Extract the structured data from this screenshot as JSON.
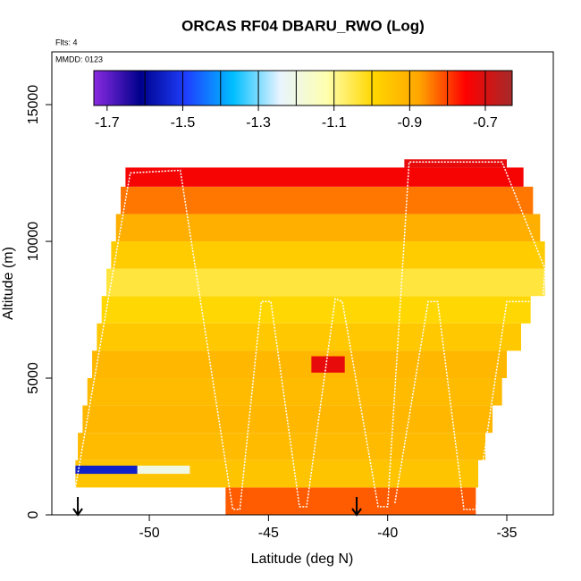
{
  "chart_data": {
    "type": "curtain",
    "title": "ORCAS RF04 DBARU_RWO (Log)",
    "annotations": [
      "Flts: 4",
      "MMDD: 0123"
    ],
    "x_label": "Latitude (deg N)",
    "y_label": "Altitude (m)",
    "xlim": [
      -54.09,
      -33.05
    ],
    "ylim": [
      0,
      16930
    ],
    "xticks": [
      -50,
      -45,
      -40,
      -35
    ],
    "yticks": [
      0,
      5000,
      10000,
      15000
    ],
    "colorbar": {
      "clim": [
        -1.735,
        -0.629
      ],
      "ticks": [
        -1.7,
        -1.5,
        -1.3,
        -1.1,
        -0.9,
        -0.7
      ],
      "bin_edges": [
        -1.6,
        -1.5,
        -1.4,
        -1.3,
        -1.2,
        -1.1,
        -1.0,
        -0.9,
        -0.8,
        -0.7
      ],
      "colormap": [
        "#8a2be2",
        "#00008b",
        "#1e40ff",
        "#00bfff",
        "#e8f4ff",
        "#ffffb0",
        "#ffd700",
        "#ffa500",
        "#ff0000",
        "#a52a2a"
      ]
    },
    "rows": [
      {
        "alt": [
          0,
          1000
        ],
        "lat": [
          -46.8,
          -36.3
        ],
        "value": -0.82
      },
      {
        "alt": [
          1000,
          2000
        ],
        "lat": [
          -53.1,
          -36.2
        ],
        "value": -0.95
      },
      {
        "alt": [
          1500,
          1800
        ],
        "lat": [
          -53.1,
          -50.5
        ],
        "value": -1.55
      },
      {
        "alt": [
          1500,
          1800
        ],
        "lat": [
          -50.5,
          -48.3
        ],
        "value": -1.2
      },
      {
        "alt": [
          2000,
          3000
        ],
        "lat": [
          -53.0,
          -35.9
        ],
        "value": -0.93
      },
      {
        "alt": [
          3000,
          4000
        ],
        "lat": [
          -52.8,
          -35.6
        ],
        "value": -0.92
      },
      {
        "alt": [
          4000,
          5000
        ],
        "lat": [
          -52.6,
          -35.2
        ],
        "value": -0.93
      },
      {
        "alt": [
          5000,
          6000
        ],
        "lat": [
          -52.4,
          -35.0
        ],
        "value": -0.92
      },
      {
        "alt": [
          5200,
          5800
        ],
        "lat": [
          -43.2,
          -41.8
        ],
        "value": -0.72
      },
      {
        "alt": [
          6000,
          7000
        ],
        "lat": [
          -52.2,
          -34.4
        ],
        "value": -0.96
      },
      {
        "alt": [
          7000,
          8000
        ],
        "lat": [
          -52.0,
          -34.0
        ],
        "value": -1.0
      },
      {
        "alt": [
          8000,
          9000
        ],
        "lat": [
          -51.8,
          -33.4
        ],
        "value": -1.04
      },
      {
        "alt": [
          9000,
          10000
        ],
        "lat": [
          -51.6,
          -33.4
        ],
        "value": -0.97
      },
      {
        "alt": [
          10000,
          11000
        ],
        "lat": [
          -51.4,
          -33.6
        ],
        "value": -0.9
      },
      {
        "alt": [
          11000,
          12000
        ],
        "lat": [
          -51.2,
          -33.9
        ],
        "value": -0.84
      },
      {
        "alt": [
          12000,
          12700
        ],
        "lat": [
          -51.0,
          -34.3
        ],
        "value": -0.74
      },
      {
        "alt": [
          12700,
          13000
        ],
        "lat": [
          -39.3,
          -35.0
        ],
        "value": -0.72
      }
    ],
    "track": {
      "x": [
        -53.1,
        -50.8,
        -48.7,
        -46.5,
        -46.2,
        -45.3,
        -44.9,
        -43.7,
        -43.4,
        -42.2,
        -41.9,
        -40.4,
        -40.0,
        -39.1,
        -35.2,
        -33.4,
        -33.5,
        -35.0,
        -36.3,
        -36.8,
        -37.9,
        -38.3,
        -39.7
      ],
      "y": [
        1000,
        12500,
        12600,
        200,
        200,
        7800,
        7800,
        300,
        300,
        7900,
        7800,
        300,
        300,
        12900,
        12900,
        9000,
        7800,
        7800,
        200,
        200,
        7800,
        7800,
        400
      ]
    },
    "markers_x": [
      -53.0,
      -41.3
    ]
  }
}
